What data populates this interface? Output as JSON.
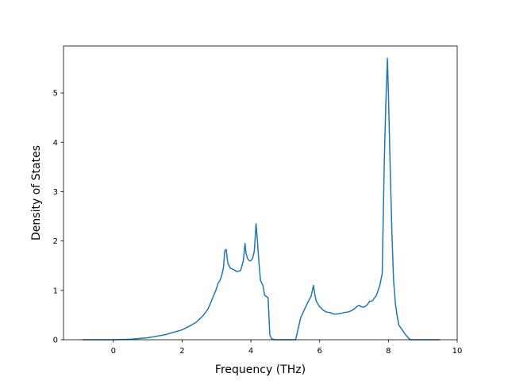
{
  "chart_data": {
    "type": "line",
    "title": "",
    "xlabel": "Frequency (THz)",
    "ylabel": "Density of States",
    "xlim": [
      -1.45,
      10.0
    ],
    "ylim": [
      0,
      5.95
    ],
    "xticks": [
      0,
      2,
      4,
      6,
      8,
      10
    ],
    "yticks": [
      0,
      1,
      2,
      3,
      4,
      5
    ],
    "grid": false,
    "legend": "none",
    "series": [
      {
        "color": "#1f77b4",
        "x": [
          -0.9,
          -0.5,
          0.0,
          0.5,
          1.0,
          1.5,
          2.0,
          2.2,
          2.4,
          2.6,
          2.75,
          2.85,
          2.92,
          2.98,
          3.05,
          3.1,
          3.15,
          3.2,
          3.24,
          3.28,
          3.33,
          3.4,
          3.5,
          3.6,
          3.7,
          3.78,
          3.83,
          3.86,
          3.9,
          3.95,
          4.0,
          4.05,
          4.1,
          4.15,
          4.19,
          4.23,
          4.28,
          4.35,
          4.4,
          4.5,
          4.55,
          4.6,
          4.65,
          4.7,
          4.9,
          5.1,
          5.3,
          5.45,
          5.55,
          5.65,
          5.75,
          5.82,
          5.86,
          5.9,
          6.0,
          6.1,
          6.2,
          6.3,
          6.4,
          6.5,
          6.6,
          6.7,
          6.8,
          6.9,
          7.0,
          7.1,
          7.15,
          7.2,
          7.3,
          7.4,
          7.45,
          7.5,
          7.55,
          7.65,
          7.75,
          7.82,
          7.85,
          7.88,
          7.92,
          7.97,
          8.0,
          8.05,
          8.1,
          8.15,
          8.2,
          8.25,
          8.3,
          8.4,
          8.5,
          8.6,
          8.65,
          9.0,
          9.5
        ],
        "y": [
          0.0,
          0.0,
          0.0,
          0.01,
          0.04,
          0.1,
          0.2,
          0.27,
          0.35,
          0.48,
          0.62,
          0.78,
          0.9,
          1.0,
          1.15,
          1.2,
          1.3,
          1.45,
          1.8,
          1.83,
          1.55,
          1.45,
          1.42,
          1.38,
          1.4,
          1.6,
          1.95,
          1.75,
          1.65,
          1.6,
          1.6,
          1.65,
          1.8,
          2.35,
          2.0,
          1.6,
          1.2,
          1.1,
          0.9,
          0.85,
          0.1,
          0.02,
          0.01,
          0.0,
          0.0,
          0.0,
          0.0,
          0.45,
          0.6,
          0.75,
          0.88,
          1.1,
          0.92,
          0.78,
          0.67,
          0.6,
          0.56,
          0.55,
          0.52,
          0.52,
          0.53,
          0.55,
          0.56,
          0.58,
          0.62,
          0.68,
          0.7,
          0.67,
          0.66,
          0.72,
          0.78,
          0.78,
          0.8,
          0.9,
          1.1,
          1.35,
          2.5,
          3.6,
          4.7,
          5.7,
          5.0,
          3.5,
          2.2,
          1.2,
          0.75,
          0.5,
          0.3,
          0.2,
          0.1,
          0.02,
          0.0,
          0.0,
          0.0
        ]
      }
    ]
  }
}
